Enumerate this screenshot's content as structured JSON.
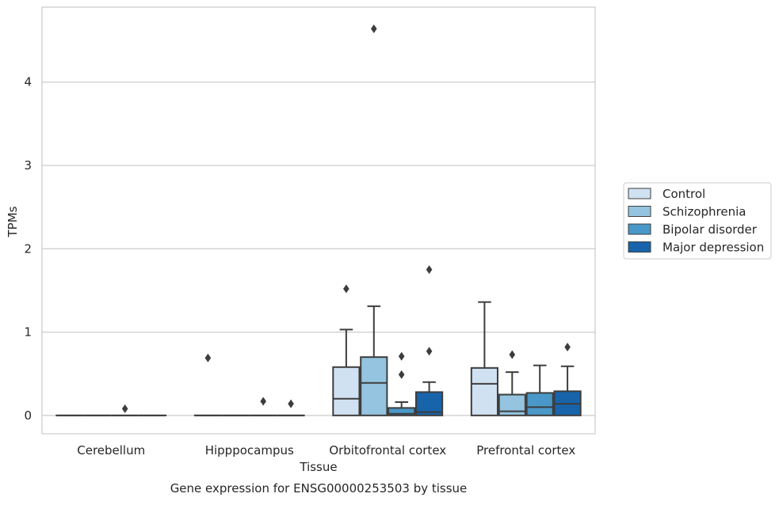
{
  "chart_data": {
    "type": "box",
    "title": "Gene expression for ENSG00000253503 by tissue",
    "xlabel": "Tissue",
    "ylabel": "TPMs",
    "ylim": [
      -0.22,
      4.9
    ],
    "yticks": [
      0,
      1,
      2,
      3,
      4
    ],
    "grid": "horizontal",
    "legend_position": "right",
    "categories": [
      "Cerebellum",
      "Hipppocampus",
      "Orbitofrontal cortex",
      "Prefrontal cortex"
    ],
    "series": [
      {
        "name": "Control",
        "color": "#d0e1f2",
        "boxes": [
          {
            "q1": 0,
            "median": 0,
            "q3": 0,
            "whisker_low": 0,
            "whisker_high": 0,
            "outliers": []
          },
          {
            "q1": 0,
            "median": 0,
            "q3": 0,
            "whisker_low": 0,
            "whisker_high": 0,
            "outliers": [
              0.69
            ]
          },
          {
            "q1": 0,
            "median": 0.2,
            "q3": 0.58,
            "whisker_low": 0,
            "whisker_high": 1.03,
            "outliers": [
              1.52
            ]
          },
          {
            "q1": 0,
            "median": 0.38,
            "q3": 0.57,
            "whisker_low": 0,
            "whisker_high": 1.36,
            "outliers": []
          }
        ]
      },
      {
        "name": "Schizophrenia",
        "color": "#94c4df",
        "boxes": [
          {
            "q1": 0,
            "median": 0,
            "q3": 0,
            "whisker_low": 0,
            "whisker_high": 0,
            "outliers": []
          },
          {
            "q1": 0,
            "median": 0,
            "q3": 0,
            "whisker_low": 0,
            "whisker_high": 0,
            "outliers": []
          },
          {
            "q1": 0,
            "median": 0.39,
            "q3": 0.7,
            "whisker_low": 0,
            "whisker_high": 1.31,
            "outliers": [
              4.64
            ]
          },
          {
            "q1": 0,
            "median": 0.05,
            "q3": 0.25,
            "whisker_low": 0,
            "whisker_high": 0.52,
            "outliers": [
              0.73
            ]
          }
        ]
      },
      {
        "name": "Bipolar disorder",
        "color": "#4a98c9",
        "boxes": [
          {
            "q1": 0,
            "median": 0,
            "q3": 0,
            "whisker_low": 0,
            "whisker_high": 0,
            "outliers": [
              0.08
            ]
          },
          {
            "q1": 0,
            "median": 0,
            "q3": 0,
            "whisker_low": 0,
            "whisker_high": 0,
            "outliers": [
              0.17
            ]
          },
          {
            "q1": 0,
            "median": 0.02,
            "q3": 0.09,
            "whisker_low": 0,
            "whisker_high": 0.16,
            "outliers": [
              0.49,
              0.71
            ]
          },
          {
            "q1": 0,
            "median": 0.1,
            "q3": 0.27,
            "whisker_low": 0,
            "whisker_high": 0.6,
            "outliers": []
          }
        ]
      },
      {
        "name": "Major depression",
        "color": "#1764ab",
        "boxes": [
          {
            "q1": 0,
            "median": 0,
            "q3": 0,
            "whisker_low": 0,
            "whisker_high": 0,
            "outliers": []
          },
          {
            "q1": 0,
            "median": 0,
            "q3": 0,
            "whisker_low": 0,
            "whisker_high": 0,
            "outliers": [
              0.14
            ]
          },
          {
            "q1": 0,
            "median": 0.04,
            "q3": 0.28,
            "whisker_low": 0,
            "whisker_high": 0.4,
            "outliers": [
              0.77,
              1.75
            ]
          },
          {
            "q1": 0,
            "median": 0.14,
            "q3": 0.29,
            "whisker_low": 0,
            "whisker_high": 0.59,
            "outliers": [
              0.82
            ]
          }
        ]
      }
    ]
  }
}
